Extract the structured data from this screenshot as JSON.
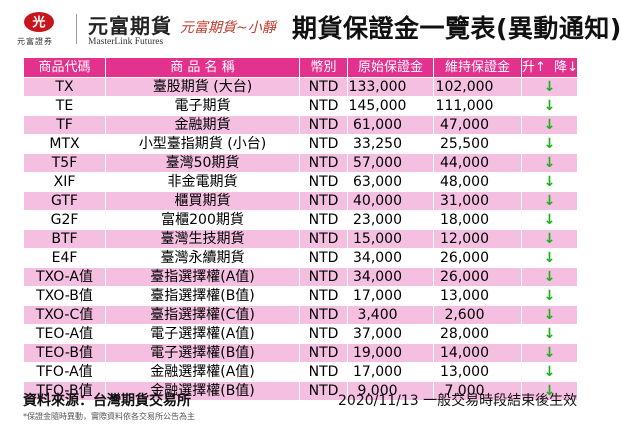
{
  "brand": {
    "badge": "光",
    "sub": "元富證券",
    "name": "元富期貨",
    "en": "MasterLink Futures",
    "brand_color": "#c8161d"
  },
  "author": "元富期貨~小靜",
  "title": "期貨保證金一覽表(異動通知)",
  "table": {
    "header_color": "#e3318e",
    "stripe_color": "#f5bfe1",
    "change_color": "#19b219",
    "columns": {
      "code": "商品代碼",
      "name": "商 品 名 稱",
      "currency": "幣別",
      "initial": "原始保證金",
      "maintenance": "維持保證金",
      "up": "升↑",
      "down": "降↓"
    },
    "rows": [
      {
        "code": "TX",
        "name": "臺股期貨 (大台)",
        "currency": "NTD",
        "initial": "133,000",
        "maintenance": "102,000",
        "change": "↓"
      },
      {
        "code": "TE",
        "name": "電子期貨",
        "currency": "NTD",
        "initial": "145,000",
        "maintenance": "111,000",
        "change": "↓"
      },
      {
        "code": "TF",
        "name": "金融期貨",
        "currency": "NTD",
        "initial": "61,000",
        "maintenance": "47,000",
        "change": "↓"
      },
      {
        "code": "MTX",
        "name": "小型臺指期貨 (小台)",
        "currency": "NTD",
        "initial": "33,250",
        "maintenance": "25,500",
        "change": "↓"
      },
      {
        "code": "T5F",
        "name": "臺灣50期貨",
        "currency": "NTD",
        "initial": "57,000",
        "maintenance": "44,000",
        "change": "↓"
      },
      {
        "code": "XIF",
        "name": "非金電期貨",
        "currency": "NTD",
        "initial": "63,000",
        "maintenance": "48,000",
        "change": "↓"
      },
      {
        "code": "GTF",
        "name": "櫃買期貨",
        "currency": "NTD",
        "initial": "40,000",
        "maintenance": "31,000",
        "change": "↓"
      },
      {
        "code": "G2F",
        "name": "富櫃200期貨",
        "currency": "NTD",
        "initial": "23,000",
        "maintenance": "18,000",
        "change": "↓"
      },
      {
        "code": "BTF",
        "name": "臺灣生技期貨",
        "currency": "NTD",
        "initial": "15,000",
        "maintenance": "12,000",
        "change": "↓"
      },
      {
        "code": "E4F",
        "name": "臺灣永續期貨",
        "currency": "NTD",
        "initial": "34,000",
        "maintenance": "26,000",
        "change": "↓"
      },
      {
        "code": "TXO-A值",
        "name": "臺指選擇權(A值)",
        "currency": "NTD",
        "initial": "34,000",
        "maintenance": "26,000",
        "change": "↓"
      },
      {
        "code": "TXO-B值",
        "name": "臺指選擇權(B值)",
        "currency": "NTD",
        "initial": "17,000",
        "maintenance": "13,000",
        "change": "↓"
      },
      {
        "code": "TXO-C值",
        "name": "臺指選擇權(C值)",
        "currency": "NTD",
        "initial": "3,400",
        "maintenance": "2,600",
        "change": "↓"
      },
      {
        "code": "TEO-A值",
        "name": "電子選擇權(A值)",
        "currency": "NTD",
        "initial": "37,000",
        "maintenance": "28,000",
        "change": "↓"
      },
      {
        "code": "TEO-B值",
        "name": "電子選擇權(B值)",
        "currency": "NTD",
        "initial": "19,000",
        "maintenance": "14,000",
        "change": "↓"
      },
      {
        "code": "TFO-A值",
        "name": "金融選擇權(A值)",
        "currency": "NTD",
        "initial": "17,000",
        "maintenance": "13,000",
        "change": "↓"
      },
      {
        "code": "TFO-B值",
        "name": "金融選擇權(B值)",
        "currency": "NTD",
        "initial": "9,000",
        "maintenance": "7,000",
        "change": "↓"
      }
    ]
  },
  "footer": {
    "source": "資料來源：台灣期貨交易所",
    "date_note": "2020/11/13 一般交易時段結束後生效",
    "disclaimer": "*保證金隨時異動，實際資料依各交易所公告為主"
  }
}
